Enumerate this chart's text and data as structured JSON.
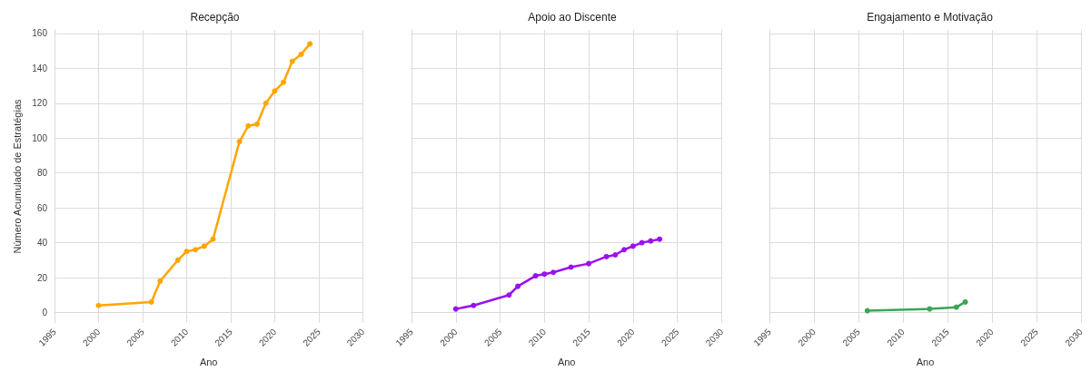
{
  "chart_data": [
    {
      "type": "line",
      "title": "Recepção",
      "xlabel": "Ano",
      "ylabel": "Número Acumulado de Estratégias",
      "xlim": [
        1995,
        2030
      ],
      "xticks": [
        1995,
        2000,
        2005,
        2010,
        2015,
        2020,
        2025,
        2030
      ],
      "ylim": [
        -6,
        162
      ],
      "yticks": [
        0,
        20,
        40,
        60,
        80,
        100,
        120,
        140,
        160
      ],
      "grid": true,
      "marker": "circle",
      "series": [
        {
          "color": "#ffa500",
          "x": [
            2000,
            2006,
            2007,
            2009,
            2010,
            2011,
            2012,
            2013,
            2016,
            2017,
            2018,
            2019,
            2020,
            2021,
            2022,
            2023,
            2024
          ],
          "values": [
            4,
            6,
            18,
            30,
            35,
            36,
            38,
            42,
            98,
            107,
            108,
            120,
            127,
            132,
            144,
            148,
            154
          ]
        }
      ]
    },
    {
      "type": "line",
      "title": "Apoio ao Discente",
      "xlabel": "Ano",
      "xlim": [
        1995,
        2030
      ],
      "xticks": [
        1995,
        2000,
        2005,
        2010,
        2015,
        2020,
        2025,
        2030
      ],
      "ylim": [
        -6,
        162
      ],
      "yticks": [
        0,
        20,
        40,
        60,
        80,
        100,
        120,
        140,
        160
      ],
      "grid": true,
      "marker": "circle",
      "tick_labels": "x",
      "series": [
        {
          "color": "#9b10f0",
          "x": [
            2000,
            2002,
            2006,
            2007,
            2009,
            2010,
            2011,
            2013,
            2015,
            2017,
            2018,
            2019,
            2020,
            2021,
            2022,
            2023
          ],
          "values": [
            2,
            4,
            10,
            15,
            21,
            22,
            23,
            26,
            28,
            32,
            33,
            36,
            38,
            40,
            41,
            42
          ]
        }
      ]
    },
    {
      "type": "line",
      "title": "Engajamento e Motivação",
      "xlabel": "Ano",
      "xlim": [
        1995,
        2030
      ],
      "xticks": [
        1995,
        2000,
        2005,
        2010,
        2015,
        2020,
        2025,
        2030
      ],
      "ylim": [
        -6,
        162
      ],
      "yticks": [
        0,
        20,
        40,
        60,
        80,
        100,
        120,
        140,
        160
      ],
      "grid": true,
      "marker": "circle",
      "tick_labels": "x",
      "series": [
        {
          "color": "#3aa655",
          "x": [
            2006,
            2013,
            2016,
            2017
          ],
          "values": [
            1,
            2,
            3,
            6
          ]
        }
      ]
    }
  ]
}
